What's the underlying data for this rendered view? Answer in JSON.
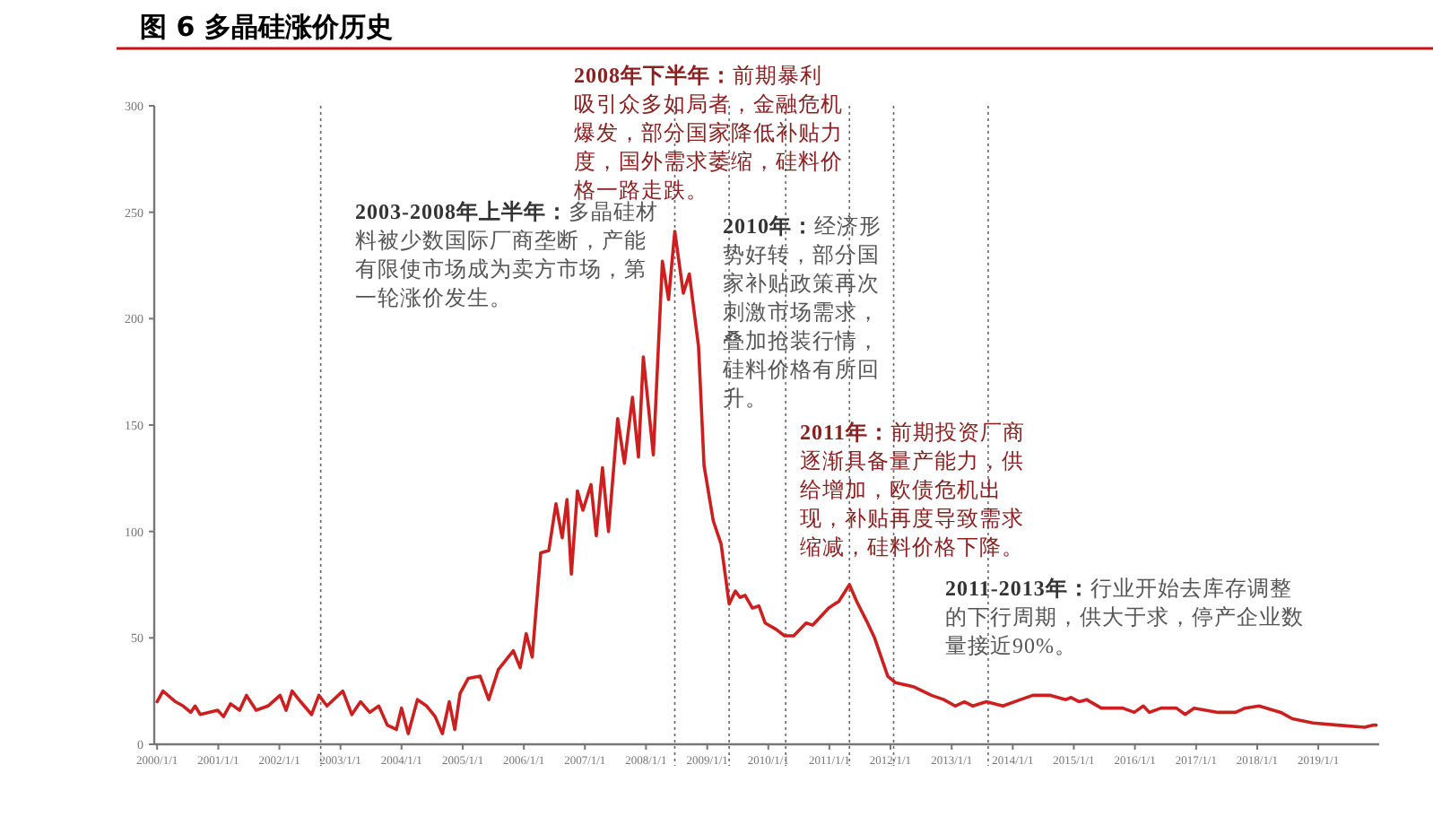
{
  "chart_data": {
    "type": "line",
    "title": "图 6 多晶硅涨价历史",
    "x": [
      "2000-01-01",
      "2000-02-05",
      "2000-04-20",
      "2000-06-05",
      "2000-07-20",
      "2000-08-15",
      "2000-09-15",
      "2000-12-28",
      "2001-02-01",
      "2001-03-15",
      "2001-05-08",
      "2001-06-18",
      "2001-08-15",
      "2001-10-25",
      "2002-01-05",
      "2002-02-10",
      "2002-03-18",
      "2002-05-08",
      "2002-07-12",
      "2002-08-25",
      "2002-10-12",
      "2003-01-15",
      "2003-03-10",
      "2003-05-01",
      "2003-06-25",
      "2003-08-18",
      "2003-10-08",
      "2003-12-01",
      "2004-01-01",
      "2004-02-10",
      "2004-04-05",
      "2004-05-30",
      "2004-07-20",
      "2004-09-01",
      "2004-10-12",
      "2004-11-14",
      "2004-12-16",
      "2005-02-03",
      "2005-04-15",
      "2005-06-05",
      "2005-08-01",
      "2005-10-30",
      "2005-12-10",
      "2006-01-15",
      "2006-02-20",
      "2006-04-12",
      "2006-05-30",
      "2006-07-12",
      "2006-08-18",
      "2006-09-16",
      "2006-10-12",
      "2006-11-17",
      "2006-12-20",
      "2007-02-06",
      "2007-03-10",
      "2007-04-16",
      "2007-05-22",
      "2007-07-16",
      "2007-08-25",
      "2007-10-12",
      "2007-11-17",
      "2007-12-16",
      "2008-02-14",
      "2008-04-08",
      "2008-05-15",
      "2008-06-21",
      "2008-08-11",
      "2008-09-16",
      "2008-11-10",
      "2008-12-13",
      "2009-02-06",
      "2009-03-25",
      "2009-05-12",
      "2009-06-18",
      "2009-07-16",
      "2009-08-15",
      "2009-09-28",
      "2009-11-06",
      "2009-12-13",
      "2010-02-17",
      "2010-04-08",
      "2010-06-02",
      "2010-08-15",
      "2010-09-24",
      "2010-12-28",
      "2011-02-03",
      "2011-02-25",
      "2011-05-01",
      "2011-06-14",
      "2011-08-11",
      "2011-09-28",
      "2011-12-16",
      "2012-01-30",
      "2012-05-19",
      "2012-09-02",
      "2012-11-14",
      "2013-01-22",
      "2013-03-18",
      "2013-05-08",
      "2013-07-27",
      "2013-11-03",
      "2014-02-17",
      "2014-05-01",
      "2014-08-15",
      "2014-11-14",
      "2014-12-16",
      "2015-02-03",
      "2015-03-18",
      "2015-06-14",
      "2015-10-20",
      "2015-12-28",
      "2016-02-20",
      "2016-03-28",
      "2016-06-05",
      "2016-09-05",
      "2016-10-27",
      "2016-12-20",
      "2017-05-12",
      "2017-08-25",
      "2017-10-20",
      "2018-01-12",
      "2018-05-22",
      "2018-07-30",
      "2018-12-01",
      "2019-04-27",
      "2019-10-05",
      "2019-11-22",
      "2019-12-13"
    ],
    "series": [
      {
        "color": "#cc1f1f",
        "values": [
          20,
          25,
          20,
          18,
          15,
          18,
          14,
          16,
          13,
          19,
          16,
          23,
          16,
          18,
          23,
          16,
          25,
          20,
          14,
          23,
          18,
          25,
          14,
          20,
          15,
          18,
          9,
          7,
          17,
          5,
          21,
          18,
          13,
          5,
          20,
          7,
          24,
          31,
          32,
          21,
          35,
          44,
          36,
          52,
          41,
          90,
          91,
          113,
          97,
          115,
          80,
          119,
          110,
          122,
          98,
          130,
          100,
          153,
          132,
          163,
          135,
          182,
          136,
          227,
          209,
          241,
          212,
          221,
          187,
          131,
          105,
          94,
          66,
          72,
          69,
          70,
          64,
          65,
          57,
          54,
          51,
          51,
          57,
          56,
          64,
          66,
          67,
          75,
          67,
          58,
          50,
          32,
          29,
          27,
          23,
          21,
          18,
          20,
          18,
          20,
          18,
          21,
          23,
          23,
          21,
          22,
          20,
          21,
          17,
          17,
          15,
          18,
          15,
          17,
          17,
          14,
          17,
          15,
          15,
          17,
          18,
          15,
          12,
          10,
          9,
          8,
          9,
          9
        ]
      }
    ],
    "xlim": [
      "1999-12-15",
      "2019-12-31"
    ],
    "xticks": [
      {
        "value": "2000-01-01",
        "label": "2000/1/1"
      },
      {
        "value": "2001-01-01",
        "label": "2001/1/1"
      },
      {
        "value": "2002-01-01",
        "label": "2002/1/1"
      },
      {
        "value": "2003-01-01",
        "label": "2003/1/1"
      },
      {
        "value": "2004-01-01",
        "label": "2004/1/1"
      },
      {
        "value": "2005-01-01",
        "label": "2005/1/1"
      },
      {
        "value": "2006-01-01",
        "label": "2006/1/1"
      },
      {
        "value": "2007-01-01",
        "label": "2007/1/1"
      },
      {
        "value": "2008-01-01",
        "label": "2008/1/1"
      },
      {
        "value": "2009-01-01",
        "label": "2009/1/1"
      },
      {
        "value": "2010-01-01",
        "label": "2010/1/1"
      },
      {
        "value": "2011-01-01",
        "label": "2011/1/1"
      },
      {
        "value": "2012-01-01",
        "label": "2012/1/1"
      },
      {
        "value": "2013-01-01",
        "label": "2013/1/1"
      },
      {
        "value": "2014-01-01",
        "label": "2014/1/1"
      },
      {
        "value": "2015-01-01",
        "label": "2015/1/1"
      },
      {
        "value": "2016-01-01",
        "label": "2016/1/1"
      },
      {
        "value": "2017-01-01",
        "label": "2017/1/1"
      },
      {
        "value": "2018-01-01",
        "label": "2018/1/1"
      },
      {
        "value": "2019-01-01",
        "label": "2019/1/1"
      }
    ],
    "ylim": [
      0,
      300
    ],
    "yticks": [
      0,
      50,
      100,
      150,
      200,
      250,
      300
    ],
    "ref_lines": [
      {
        "axis": "x",
        "value": "2002-09-05",
        "color": "#666666",
        "line_style": "dotted"
      },
      {
        "axis": "x",
        "value": "2008-06-21",
        "color": "#666666",
        "line_style": "dotted"
      },
      {
        "axis": "x",
        "value": "2009-05-12",
        "color": "#666666",
        "line_style": "dotted"
      },
      {
        "axis": "x",
        "value": "2010-04-15",
        "color": "#666666",
        "line_style": "dotted"
      },
      {
        "axis": "x",
        "value": "2011-05-01",
        "color": "#666666",
        "line_style": "dotted"
      },
      {
        "axis": "x",
        "value": "2012-01-20",
        "color": "#666666",
        "line_style": "dotted"
      },
      {
        "axis": "x",
        "value": "2013-08-07",
        "color": "#666666",
        "line_style": "dotted"
      }
    ],
    "annotations": [
      "**2003-2008年上半年：**多晶硅材料被少数国际厂商垄断，产能有限使市场成为卖方市场，第一轮涨价发生。",
      "**2008年下半年：**前期暴利吸引众多如局者，金融危机爆发，部分国家降低补贴力度，国外需求萎缩，硅料价格一路走跌。",
      "**2010年：**经济形势好转，部分国家补贴政策再次刺激市场需求，叠加抢装行情，硅料价格有所回升。",
      "**2011年：**前期投资厂商逐渐具备量产能力，供给增加，欧债危机出现，补贴再度导致需求缩减，硅料价格下降。",
      "**2011-2013年：**行业开始去库存调整的下行周期，供大于求，停产企业数量接近90%。"
    ],
    "grid": false,
    "marker": "none",
    "line_style": "solid"
  }
}
